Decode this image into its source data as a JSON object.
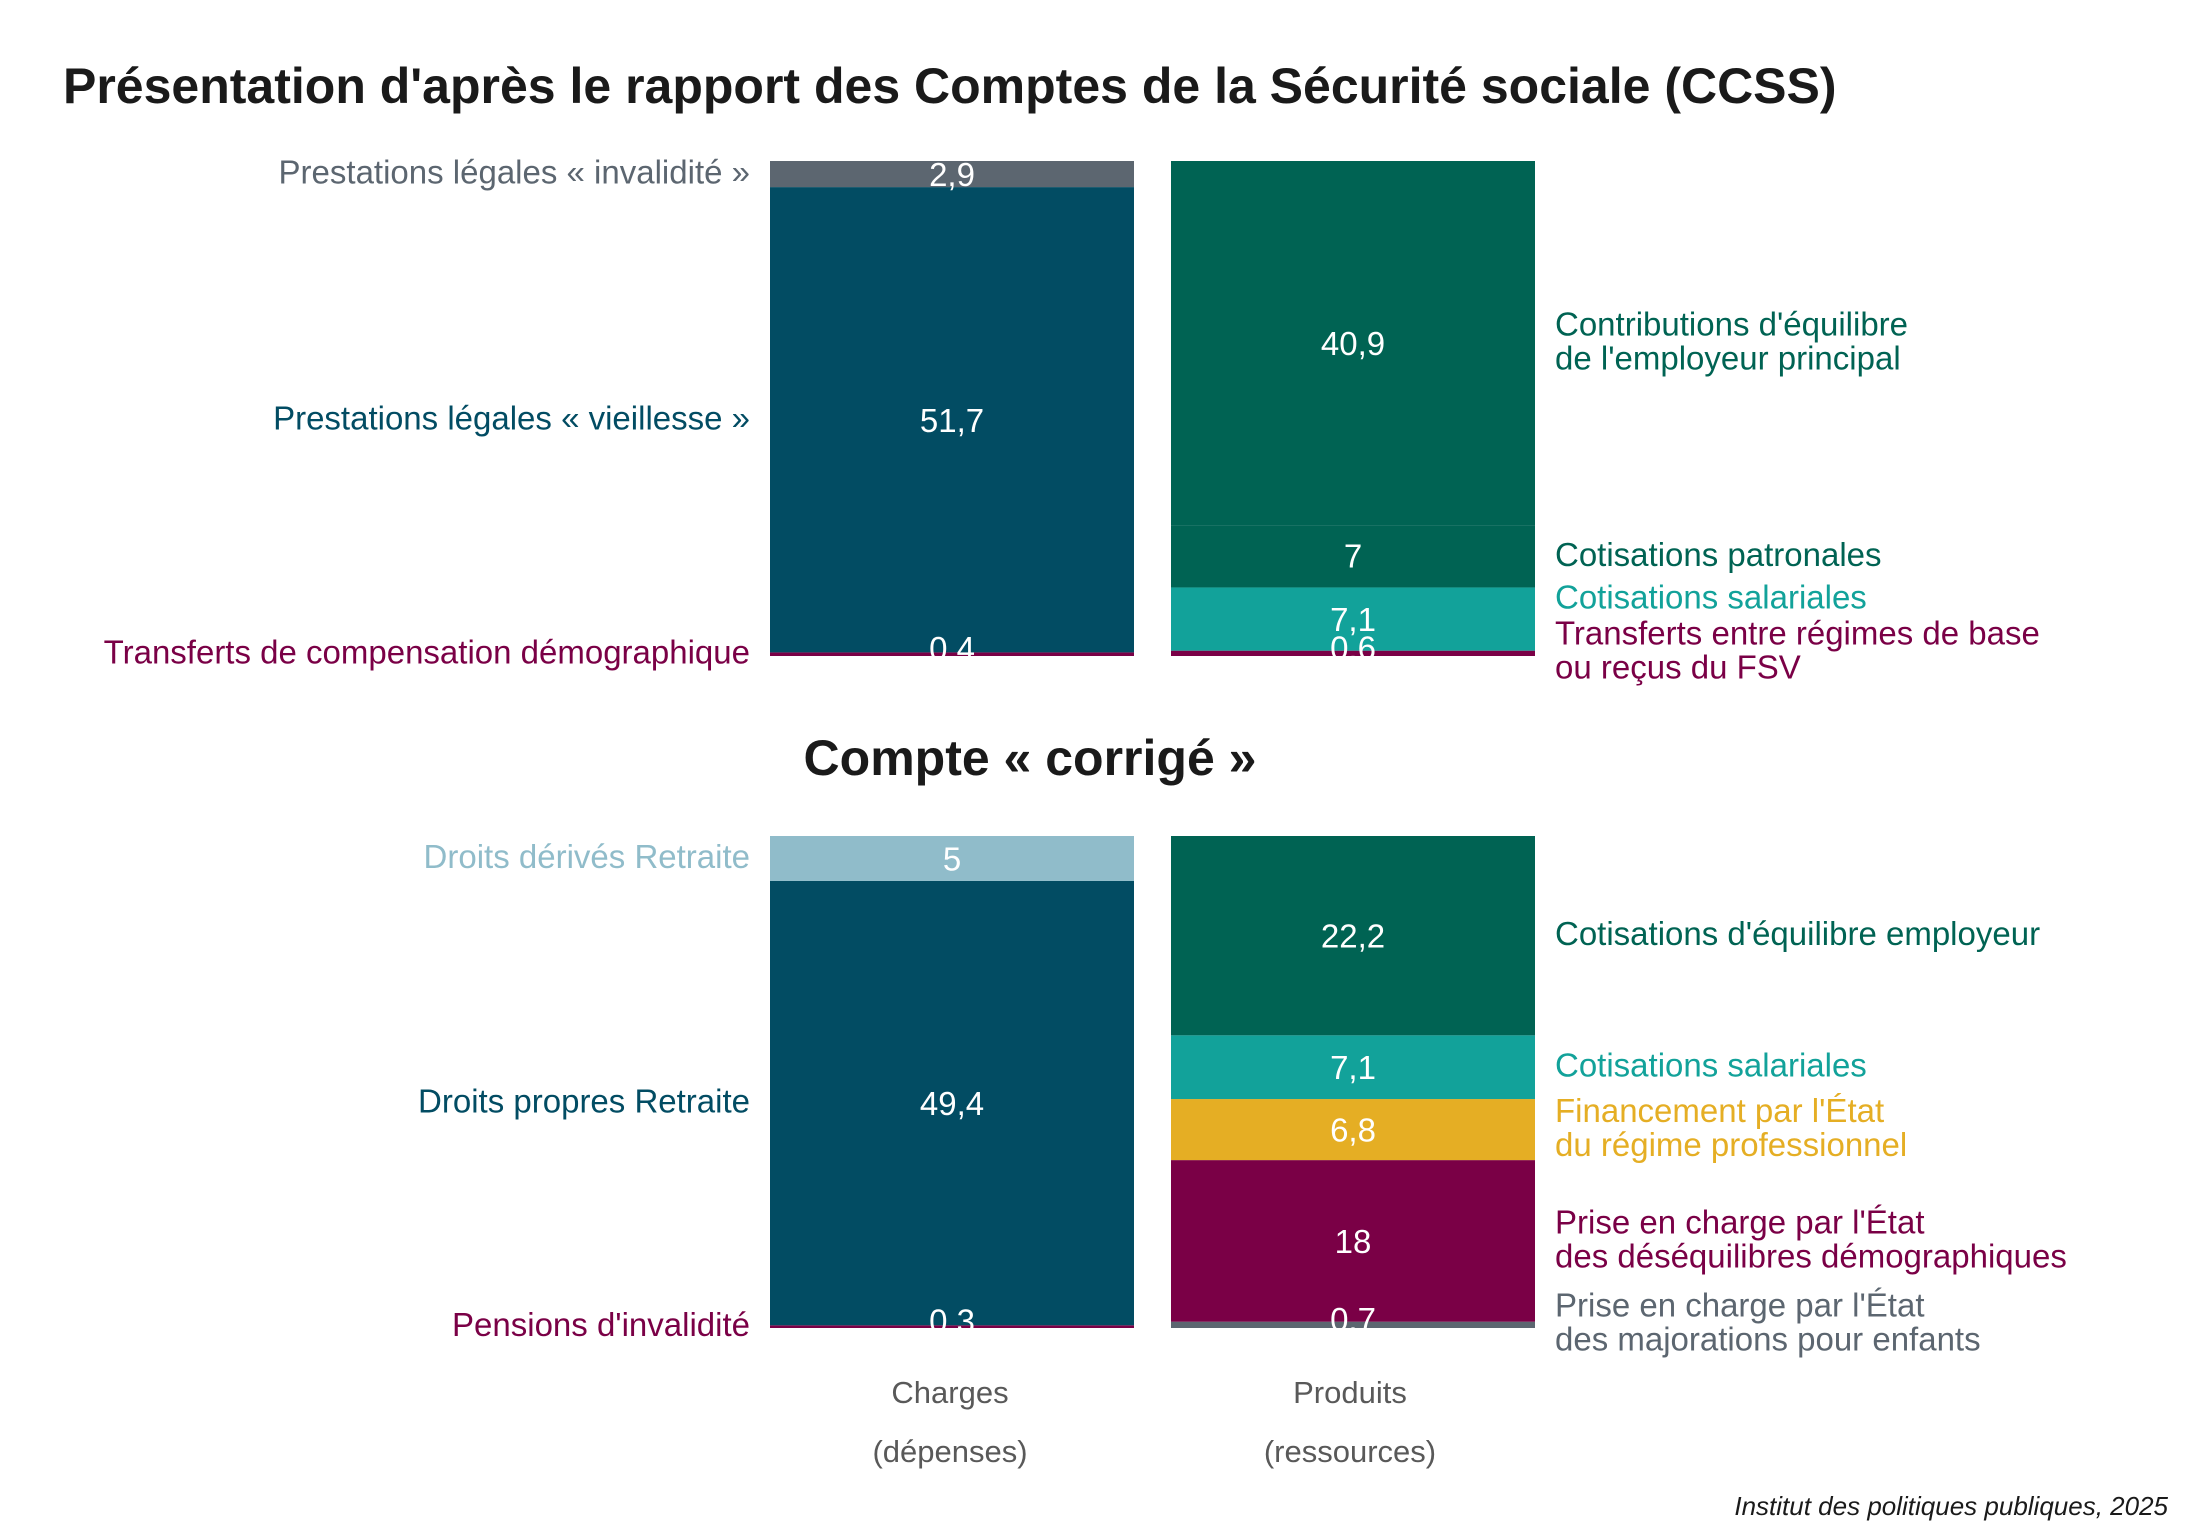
{
  "colors": {
    "vieillesse": "#024c63",
    "invalidite": "#5c6670",
    "demographique": "#7a0046",
    "employeur": "#006353",
    "salariales": "#12a29a",
    "etat_pro": "#e5ae24",
    "derives": "#90bcca"
  },
  "chart_data": [
    {
      "type": "bar",
      "stacked": true,
      "title": "Présentation d'après le rapport des Comptes de la Sécurité sociale (CCSS)",
      "categories": [
        "Charges (dépenses)",
        "Produits (ressources)"
      ],
      "series": [
        {
          "bar": "Charges (dépenses)",
          "name": "Transferts de compensation démographique",
          "value": 0.4,
          "value_label": "0,4",
          "color_key": "demographique"
        },
        {
          "bar": "Charges (dépenses)",
          "name": "Prestations légales « vieillesse »",
          "value": 51.7,
          "value_label": "51,7",
          "color_key": "vieillesse"
        },
        {
          "bar": "Charges (dépenses)",
          "name": "Prestations légales « invalidité »",
          "value": 2.9,
          "value_label": "2,9",
          "color_key": "invalidite"
        },
        {
          "bar": "Produits (ressources)",
          "name": "Transferts entre régimes de base\nou reçus du FSV",
          "value": 0.6,
          "value_label": "0,6",
          "color_key": "demographique"
        },
        {
          "bar": "Produits (ressources)",
          "name": "Cotisations salariales",
          "value": 7.1,
          "value_label": "7,1",
          "color_key": "salariales"
        },
        {
          "bar": "Produits (ressources)",
          "name": "Cotisations patronales",
          "value": 7,
          "value_label": "7",
          "color_key": "employeur"
        },
        {
          "bar": "Produits (ressources)",
          "name": "Contributions d'équilibre\nde l'employeur principal",
          "value": 40.9,
          "value_label": "40,9",
          "color_key": "employeur"
        }
      ]
    },
    {
      "type": "bar",
      "stacked": true,
      "title": "Compte « corrigé »",
      "categories": [
        "Charges (dépenses)",
        "Produits (ressources)"
      ],
      "series": [
        {
          "bar": "Charges (dépenses)",
          "name": "Pensions d'invalidité",
          "value": 0.3,
          "value_label": "0,3",
          "color_key": "demographique"
        },
        {
          "bar": "Charges (dépenses)",
          "name": "Droits propres Retraite",
          "value": 49.4,
          "value_label": "49,4",
          "color_key": "vieillesse"
        },
        {
          "bar": "Charges (dépenses)",
          "name": "Droits dérivés Retraite",
          "value": 5,
          "value_label": "5",
          "color_key": "derives"
        },
        {
          "bar": "Produits (ressources)",
          "name": "Prise en charge par l'État\ndes majorations pour enfants",
          "value": 0.7,
          "value_label": "0,7",
          "color_key": "invalidite"
        },
        {
          "bar": "Produits (ressources)",
          "name": "Prise en charge par l'État\ndes déséquilibres démographiques",
          "value": 18,
          "value_label": "18",
          "color_key": "demographique"
        },
        {
          "bar": "Produits (ressources)",
          "name": "Financement par l'État\ndu régime professionnel",
          "value": 6.8,
          "value_label": "6,8",
          "color_key": "etat_pro"
        },
        {
          "bar": "Produits (ressources)",
          "name": "Cotisations salariales",
          "value": 7.1,
          "value_label": "7,1",
          "color_key": "salariales"
        },
        {
          "bar": "Produits (ressources)",
          "name": "Cotisations d'équilibre employeur",
          "value": 22.2,
          "value_label": "22,2",
          "color_key": "employeur"
        }
      ]
    }
  ],
  "axis": {
    "charges_line1": "Charges",
    "charges_line2": "(dépenses)",
    "produits_line1": "Produits",
    "produits_line2": "(ressources)"
  },
  "credit": "Institut des politiques publiques, 2025"
}
